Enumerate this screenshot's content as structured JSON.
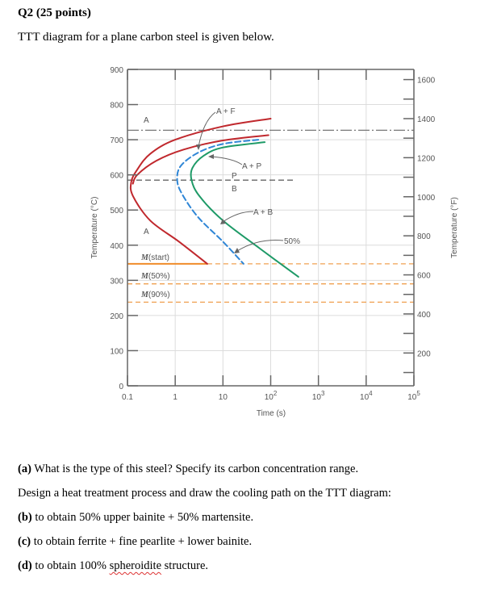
{
  "header": {
    "title": "Q2 (25 points)",
    "intro": "TTT diagram for a plane carbon steel is given below."
  },
  "chart_data": {
    "type": "line",
    "title": "",
    "xlabel": "Time (s)",
    "ylabel": "Temperature (°C)",
    "ylabel_right": "Temperature (°F)",
    "xscale": "log",
    "xlim": [
      0.1,
      100000
    ],
    "ylim": [
      0,
      900
    ],
    "x_ticks": [
      {
        "value": 0.1,
        "label": "0.1"
      },
      {
        "value": 1,
        "label": "1"
      },
      {
        "value": 10,
        "label": "10"
      },
      {
        "value": 100,
        "label": "10",
        "sup": "2"
      },
      {
        "value": 1000,
        "label": "10",
        "sup": "3"
      },
      {
        "value": 10000,
        "label": "10",
        "sup": "4"
      },
      {
        "value": 100000,
        "label": "10",
        "sup": "5"
      }
    ],
    "y_ticks": [
      0,
      100,
      200,
      300,
      400,
      500,
      600,
      700,
      800,
      900
    ],
    "y_right_ticks": [
      200,
      400,
      600,
      800,
      1000,
      1200,
      1400,
      1600
    ],
    "grid": true,
    "eutectoid_line": 727,
    "pb_boundary_line": 585,
    "martensite_lines": [
      {
        "name": "M(start)",
        "M": "M",
        "rest": "(start)",
        "T": 347
      },
      {
        "name": "M(50%)",
        "M": "M",
        "rest": "(50%)",
        "T": 290
      },
      {
        "name": "M(90%)",
        "M": "M",
        "rest": "(90%)",
        "T": 238
      }
    ],
    "series": [
      {
        "name": "A+F start (red outer)",
        "color": "#c0282d",
        "style": "solid",
        "points": [
          [
            100,
            760
          ],
          [
            10,
            738
          ],
          [
            1,
            700
          ],
          [
            0.3,
            660
          ],
          [
            0.16,
            615
          ],
          [
            0.12,
            580
          ],
          [
            0.13,
            540
          ],
          [
            0.3,
            470
          ],
          [
            1.2,
            410
          ],
          [
            4.7,
            347
          ]
        ]
      },
      {
        "name": "A+P start (red inner)",
        "color": "#c0282d",
        "style": "solid",
        "points": [
          [
            90,
            713
          ],
          [
            10,
            698
          ],
          [
            1.5,
            672
          ],
          [
            0.4,
            640
          ],
          [
            0.16,
            600
          ],
          [
            0.13,
            575
          ]
        ]
      },
      {
        "name": "50% transformation (blue dashed)",
        "color": "#2f86d6",
        "style": "dashed",
        "points": [
          [
            55,
            700
          ],
          [
            10,
            688
          ],
          [
            3,
            663
          ],
          [
            1.3,
            625
          ],
          [
            1.1,
            585
          ],
          [
            1.4,
            545
          ],
          [
            3,
            480
          ],
          [
            10,
            410
          ],
          [
            27,
            347
          ]
        ]
      },
      {
        "name": "Transformation complete (green)",
        "color": "#1e9a67",
        "style": "solid",
        "points": [
          [
            75,
            693
          ],
          [
            10,
            678
          ],
          [
            4,
            655
          ],
          [
            2.3,
            620
          ],
          [
            2.2,
            585
          ],
          [
            3.2,
            540
          ],
          [
            10,
            470
          ],
          [
            60,
            390
          ],
          [
            380,
            310
          ]
        ]
      }
    ],
    "annotations": [
      {
        "text": "A",
        "id": "region-austenite-top"
      },
      {
        "text": "A + F",
        "id": "label-a-plus-f"
      },
      {
        "text": "A + P",
        "id": "label-a-plus-p"
      },
      {
        "text": "P",
        "id": "label-p"
      },
      {
        "text": "B",
        "id": "label-b"
      },
      {
        "text": "A + B",
        "id": "label-a-plus-b"
      },
      {
        "text": "A",
        "id": "region-austenite-bottom"
      },
      {
        "text": "50%",
        "id": "label-50-percent"
      }
    ]
  },
  "questions": {
    "a_tag": "(a)",
    "a_text": " What is the type of this steel? Specify its carbon concentration range.",
    "design": "Design a heat treatment process and draw the cooling path on the TTT diagram:",
    "b_tag": "(b)",
    "b_text": " to obtain 50% upper bainite + 50% martensite.",
    "c_tag": "(c)",
    "c_text": " to obtain ferrite + fine pearlite + lower bainite.",
    "d_tag": "(d)",
    "d_pre": " to obtain 100% ",
    "d_word": "spheroidite",
    "d_post": " structure."
  },
  "colors": {
    "red": "#c0282d",
    "blue": "#2f86d6",
    "green": "#1e9a67",
    "orange": "#f0a050",
    "axis": "#666666",
    "grid": "#dcdcdc"
  }
}
